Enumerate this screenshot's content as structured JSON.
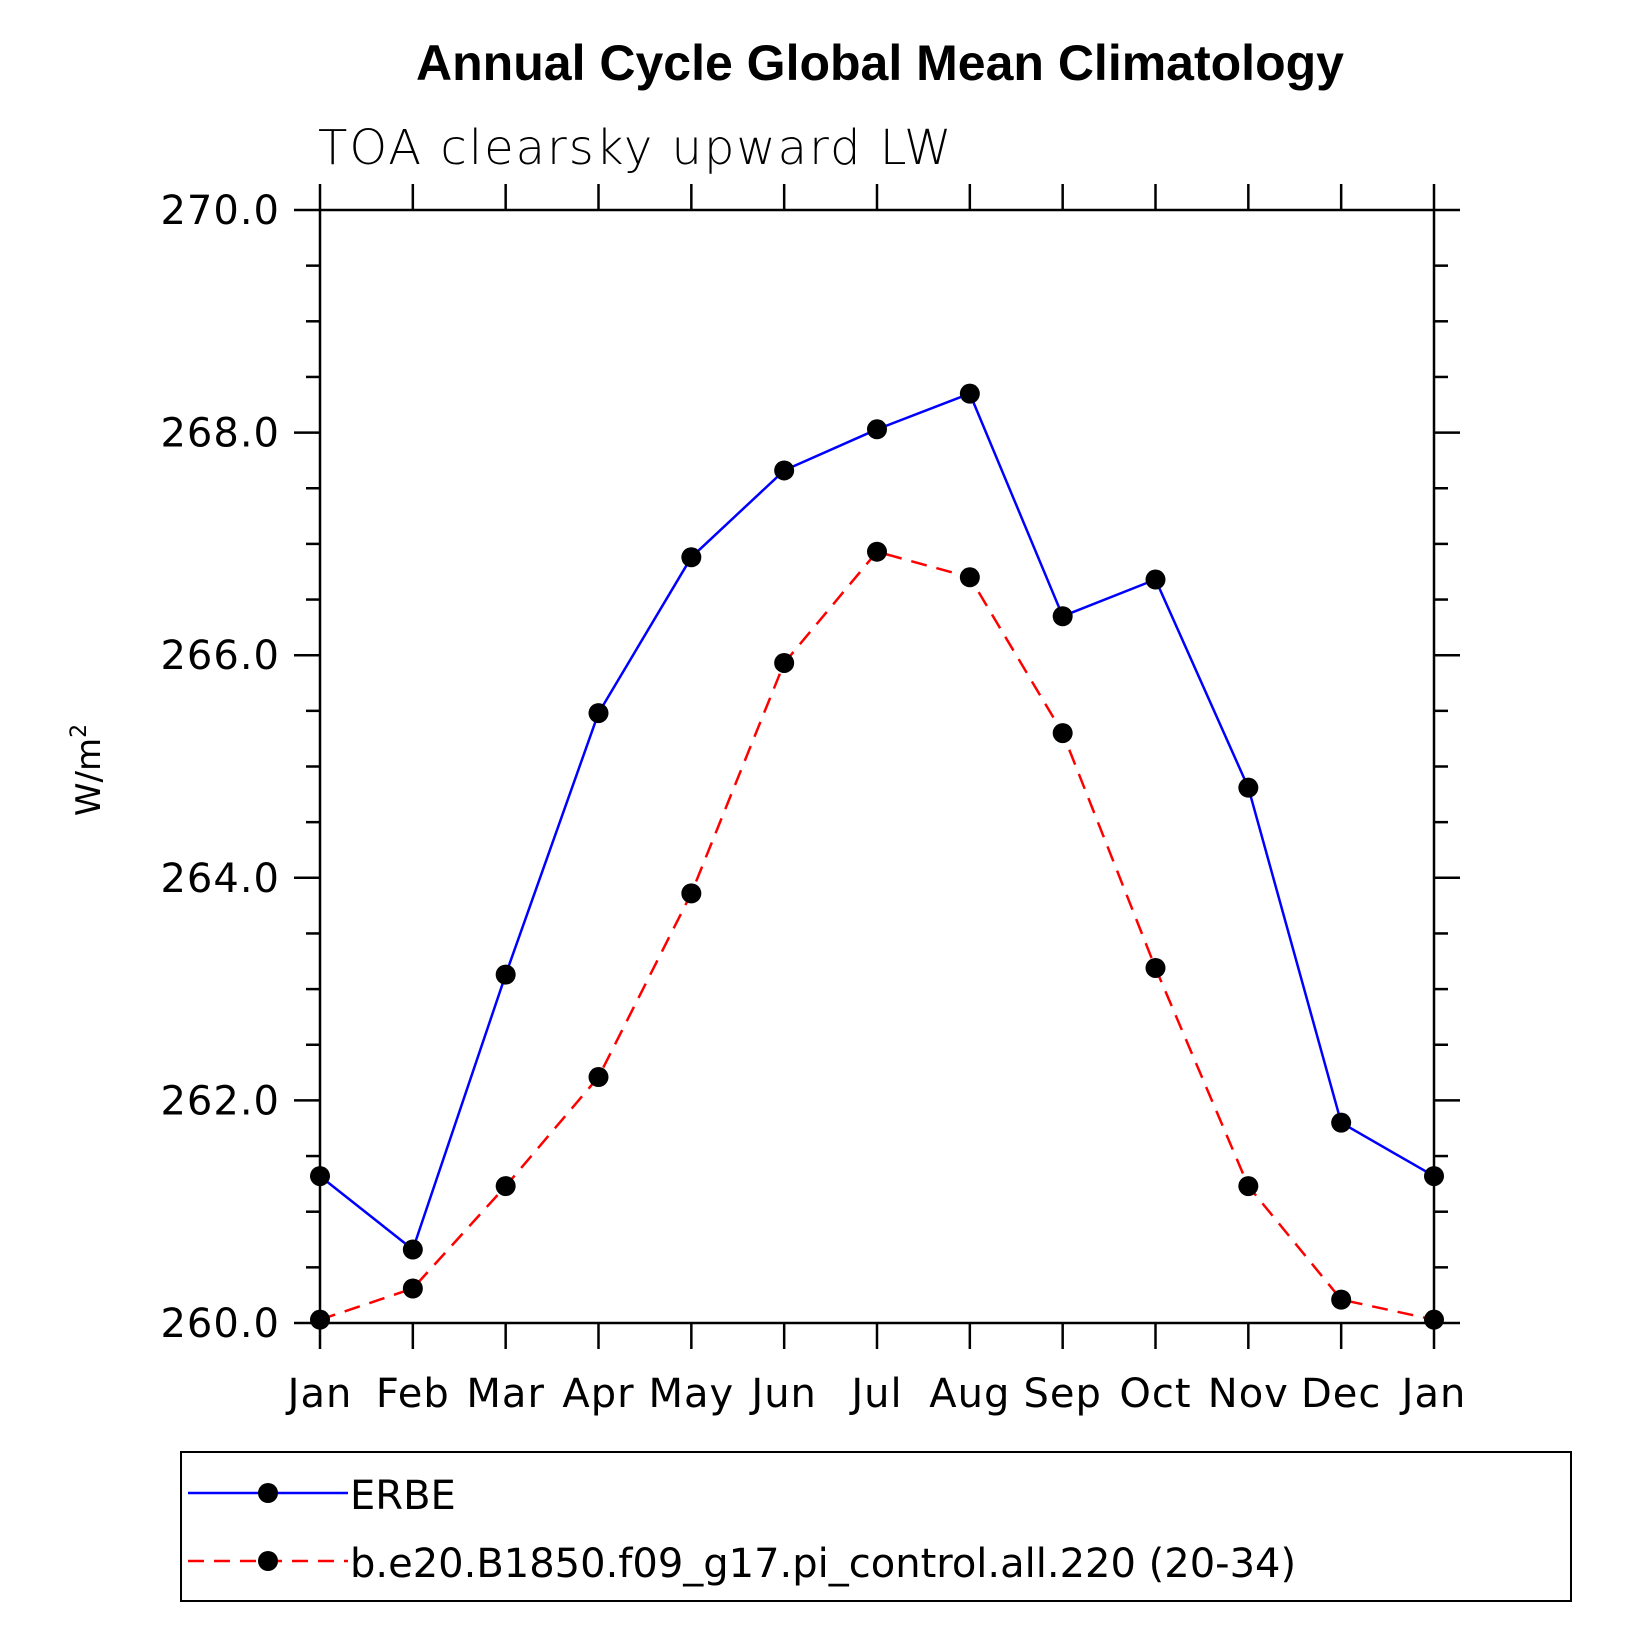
{
  "chart_data": {
    "type": "line",
    "title": "Annual Cycle Global Mean Climatology",
    "subtitle": "TOA clearsky upward LW",
    "ylabel_base": "W/m",
    "ylabel_sup": "2",
    "xlabel": "",
    "categories": [
      "Jan",
      "Feb",
      "Mar",
      "Apr",
      "May",
      "Jun",
      "Jul",
      "Aug",
      "Sep",
      "Oct",
      "Nov",
      "Dec",
      "Jan"
    ],
    "ylim": [
      260.0,
      270.0
    ],
    "yticks_major": [
      "260.0",
      "262.0",
      "264.0",
      "266.0",
      "268.0",
      "270.0"
    ],
    "series": [
      {
        "name": "ERBE",
        "color": "#0000ff",
        "dash": "solid",
        "marker": "filled-circle",
        "values": [
          261.32,
          260.66,
          263.13,
          265.48,
          266.88,
          267.66,
          268.03,
          268.35,
          266.35,
          266.68,
          264.81,
          261.8,
          261.32
        ]
      },
      {
        "name": "b.e20.B1850.f09_g17.pi_control.all.220 (20-34)",
        "color": "#ff0000",
        "dash": "dashed",
        "marker": "filled-circle",
        "values": [
          260.03,
          260.31,
          261.23,
          262.21,
          263.86,
          265.93,
          266.93,
          266.7,
          265.3,
          263.19,
          261.23,
          260.21,
          260.03
        ]
      }
    ],
    "grid": false,
    "legend_position": "bottom"
  }
}
